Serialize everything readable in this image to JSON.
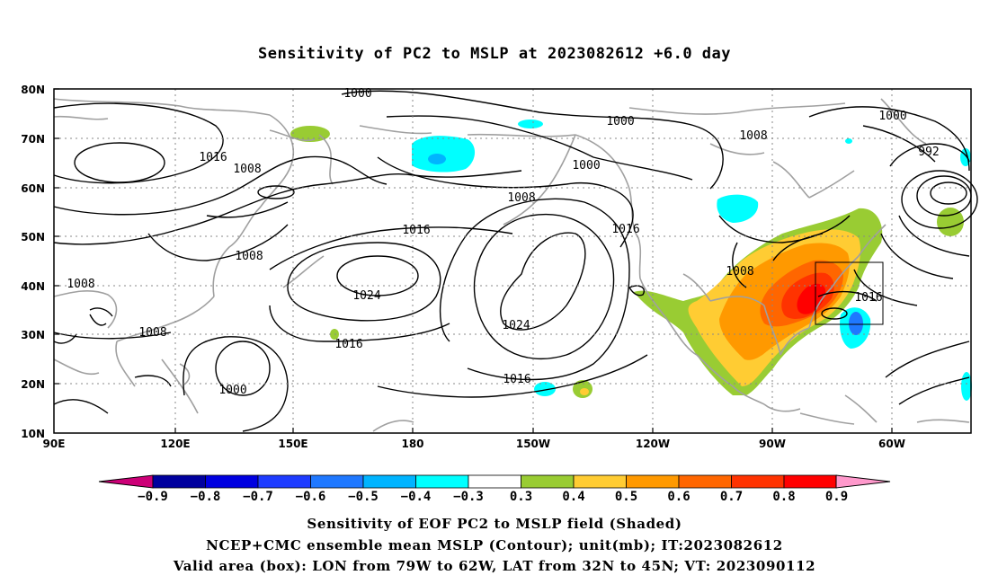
{
  "title": "Sensitivity of PC2 to MSLP at 2023082612 +6.0 day",
  "map": {
    "lat_labels": [
      "80N",
      "70N",
      "60N",
      "50N",
      "40N",
      "30N",
      "20N",
      "10N"
    ],
    "lon_labels": [
      "90E",
      "120E",
      "150E",
      "180",
      "150W",
      "120W",
      "90W",
      "60W"
    ],
    "contour_labels": [
      {
        "text": "1000"
      },
      {
        "text": "1000"
      },
      {
        "text": "1000"
      },
      {
        "text": "1000"
      },
      {
        "text": "1000"
      },
      {
        "text": "992"
      },
      {
        "text": "1008"
      },
      {
        "text": "1008"
      },
      {
        "text": "1008"
      },
      {
        "text": "1008"
      },
      {
        "text": "1008"
      },
      {
        "text": "1008"
      },
      {
        "text": "1008"
      },
      {
        "text": "1016"
      },
      {
        "text": "1016"
      },
      {
        "text": "1016"
      },
      {
        "text": "1016"
      },
      {
        "text": "1016"
      },
      {
        "text": "1016"
      },
      {
        "text": "1024"
      },
      {
        "text": "1024"
      }
    ]
  },
  "colorbar": {
    "labels": [
      "−0.9",
      "−0.8",
      "−0.7",
      "−0.6",
      "−0.5",
      "−0.4",
      "−0.3",
      "0.3",
      "0.4",
      "0.5",
      "0.6",
      "0.7",
      "0.8",
      "0.9"
    ],
    "colors": [
      "#cc0077",
      "#00009e",
      "#0000e0",
      "#1e3cff",
      "#1f78ff",
      "#00b4ff",
      "#00ffff",
      "#ffffff",
      "#99cc33",
      "#ffcc33",
      "#ff9900",
      "#ff6600",
      "#ff3300",
      "#ff0000",
      "#ff99cc"
    ]
  },
  "captions": {
    "line1": "Sensitivity of EOF PC2 to MSLP field (Shaded)",
    "line2": "NCEP+CMC ensemble mean MSLP (Contour); unit(mb); IT:2023082612",
    "line3": "Valid area (box): LON from 79W to 62W, LAT from 32N to 45N; VT: 2023090112"
  }
}
